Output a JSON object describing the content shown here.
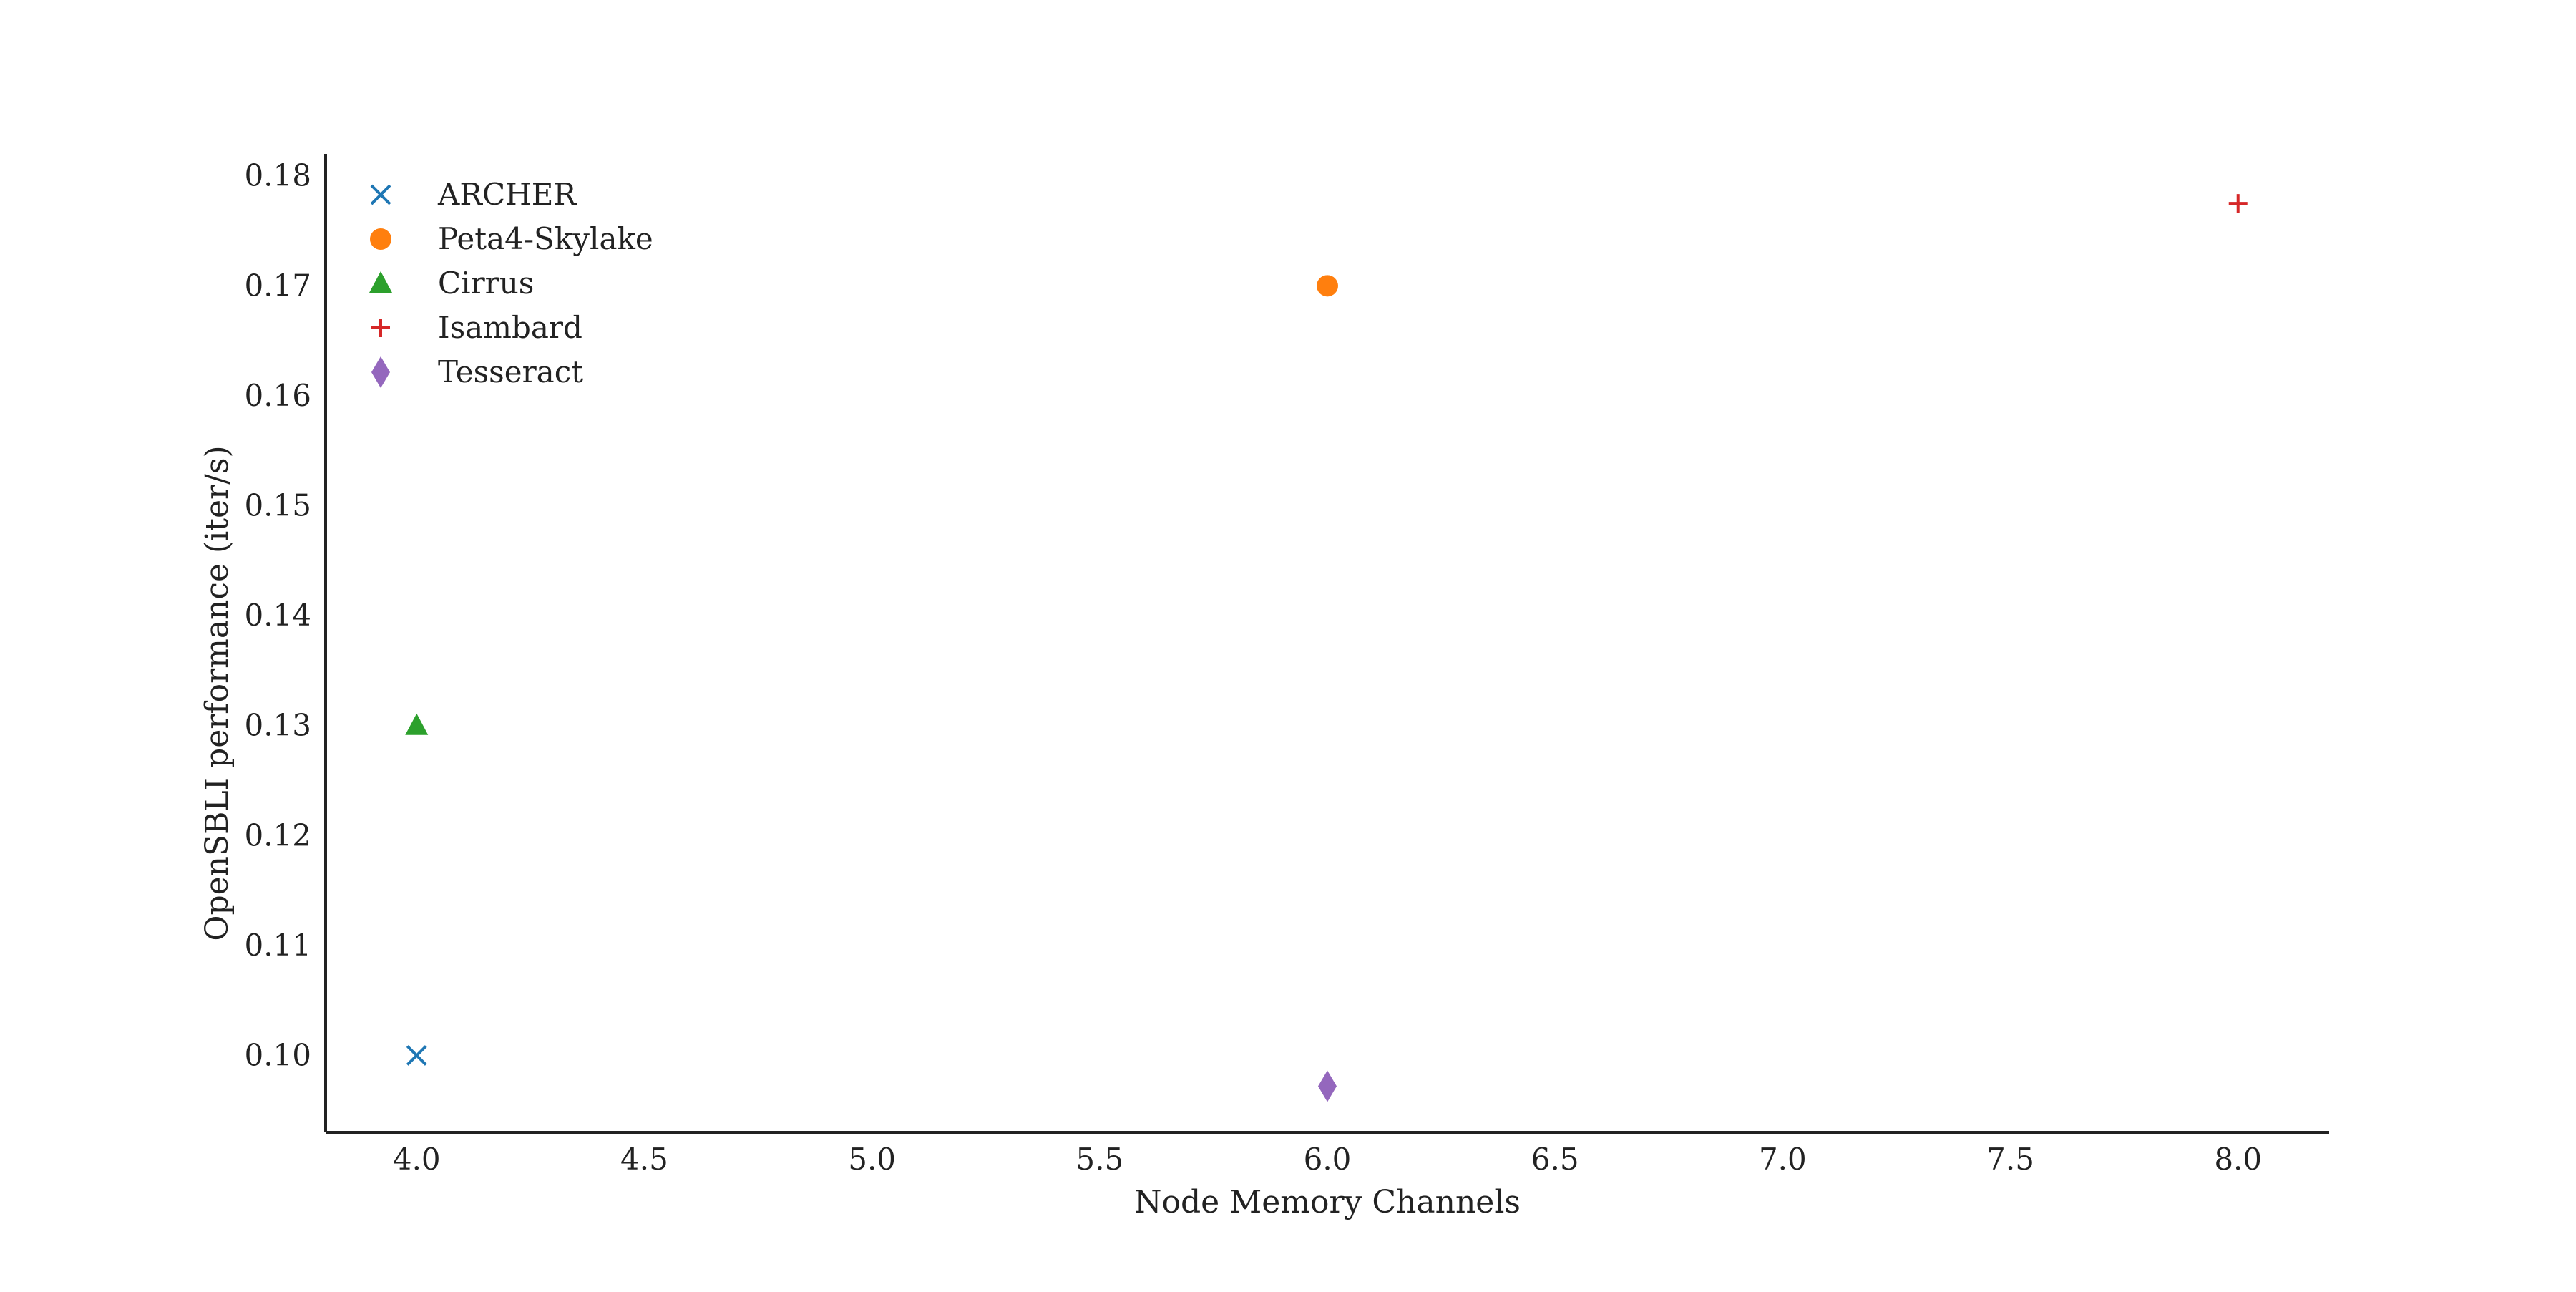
{
  "chart_data": {
    "type": "scatter",
    "title": "",
    "xlabel": "Node Memory Channels",
    "ylabel": "OpenSBLI performance (iter/s)",
    "xlim": [
      3.8,
      8.2
    ],
    "ylim": [
      0.093,
      0.182
    ],
    "x_ticks": [
      "4.0",
      "4.5",
      "5.0",
      "5.5",
      "6.0",
      "6.5",
      "7.0",
      "7.5",
      "8.0"
    ],
    "y_ticks": [
      "0.10",
      "0.11",
      "0.12",
      "0.13",
      "0.14",
      "0.15",
      "0.16",
      "0.17",
      "0.18"
    ],
    "grid": false,
    "legend_position": "top-left",
    "series": [
      {
        "name": "ARCHER",
        "marker": "x",
        "color": "#1f77b4",
        "points": [
          {
            "x": 4.0,
            "y": 0.1
          }
        ]
      },
      {
        "name": "Peta4-Skylake",
        "marker": "circle",
        "color": "#ff7f0e",
        "points": [
          {
            "x": 6.0,
            "y": 0.17
          }
        ]
      },
      {
        "name": "Cirrus",
        "marker": "triangle",
        "color": "#2ca02c",
        "points": [
          {
            "x": 4.0,
            "y": 0.13
          }
        ]
      },
      {
        "name": "Isambard",
        "marker": "plus",
        "color": "#d62728",
        "points": [
          {
            "x": 8.0,
            "y": 0.1775
          }
        ]
      },
      {
        "name": "Tesseract",
        "marker": "diamond",
        "color": "#9467bd",
        "points": [
          {
            "x": 6.0,
            "y": 0.0972
          }
        ]
      }
    ]
  }
}
